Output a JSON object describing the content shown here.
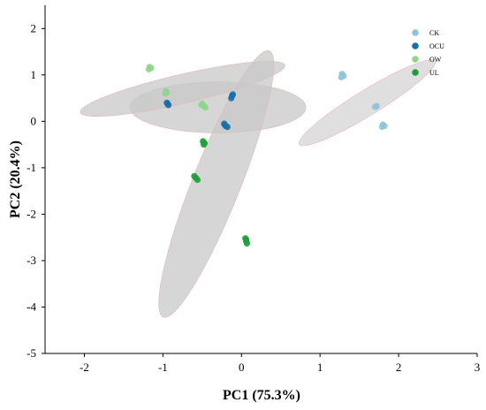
{
  "chart_data": {
    "type": "scatter",
    "xlabel": "PC1 (75.3%)",
    "ylabel": "PC2 (20.4%)",
    "xlim": [
      -2.5,
      3
    ],
    "ylim": [
      -5,
      2.5
    ],
    "xticks": [
      "-2",
      "-1",
      "0",
      "1",
      "2",
      "3"
    ],
    "xtick_values": [
      -2,
      -1,
      0,
      1,
      2,
      3
    ],
    "yticks": [
      "2",
      "1",
      "0",
      "-1",
      "-2",
      "-3",
      "-4",
      "-5"
    ],
    "ytick_values": [
      2,
      1,
      0,
      -1,
      -2,
      -3,
      -4,
      -5
    ],
    "grid": false,
    "legend_position": "top-right",
    "series": [
      {
        "name": "CK",
        "color": "#8fc4dc",
        "x": [
          1.28,
          1.3,
          1.27,
          1.72,
          1.7,
          1.8,
          1.82,
          1.79
        ],
        "y": [
          1.02,
          0.98,
          0.95,
          0.33,
          0.31,
          -0.07,
          -0.1,
          -0.12
        ]
      },
      {
        "name": "OCU",
        "color": "#1b6fa8",
        "x": [
          -0.94,
          -0.93,
          -0.95,
          -0.22,
          -0.2,
          -0.18,
          -0.21,
          -0.12,
          -0.13,
          -0.11
        ],
        "y": [
          0.38,
          0.35,
          0.4,
          -0.05,
          -0.1,
          -0.12,
          -0.08,
          0.55,
          0.5,
          0.58
        ]
      },
      {
        "name": "OW",
        "color": "#8fd68a",
        "x": [
          -1.17,
          -1.15,
          -1.18,
          -0.96,
          -0.95,
          -0.97,
          -0.5,
          -0.48,
          -0.46,
          -0.51
        ],
        "y": [
          1.17,
          1.15,
          1.12,
          0.65,
          0.62,
          0.6,
          0.38,
          0.33,
          0.3,
          0.35
        ]
      },
      {
        "name": "UL",
        "color": "#1f9e3a",
        "x": [
          -0.49,
          -0.47,
          -0.48,
          -0.6,
          -0.58,
          -0.56,
          0.05,
          0.06,
          0.07,
          0.06
        ],
        "y": [
          -0.43,
          -0.47,
          -0.5,
          -1.18,
          -1.22,
          -1.26,
          -2.52,
          -2.58,
          -2.63,
          -2.55
        ]
      }
    ],
    "ellipses": [
      {
        "group": "CK",
        "cx": 1.6,
        "cy": 0.4,
        "rx": 1.25,
        "ry": 0.22,
        "angle_deg": 47,
        "color": "#d4d4d4"
      },
      {
        "group": "OCU",
        "cx": -0.3,
        "cy": 0.3,
        "rx": 1.12,
        "ry": 0.55,
        "angle_deg": 0,
        "color": "#c8c8c8"
      },
      {
        "group": "OW",
        "cx": -0.75,
        "cy": 0.7,
        "rx": 1.4,
        "ry": 0.3,
        "angle_deg": 22,
        "color": "#c8c8c8"
      },
      {
        "group": "UL",
        "cx": -0.32,
        "cy": -1.35,
        "rx": 2.95,
        "ry": 0.32,
        "angle_deg": 77,
        "color": "#c8c8c8"
      }
    ]
  }
}
